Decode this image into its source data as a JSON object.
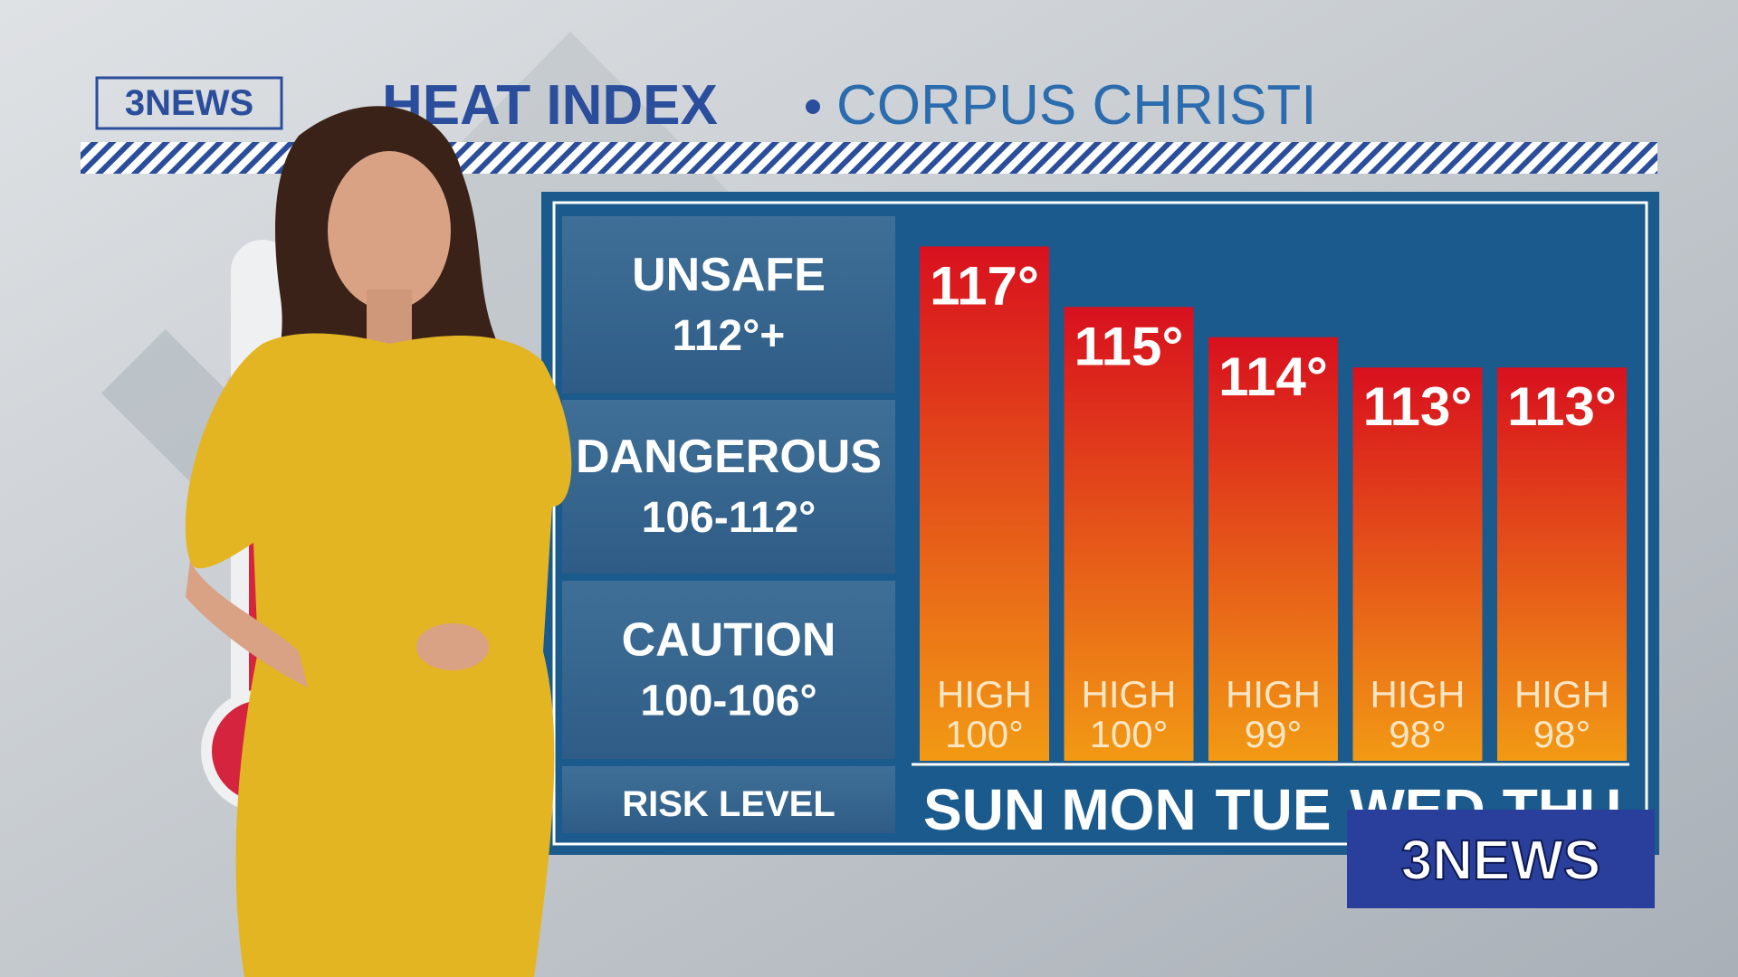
{
  "chart_data": {
    "type": "bar",
    "logo": "3NEWS",
    "title": "HEAT INDEX",
    "subtitle": "CORPUS CHRISTI",
    "categories": [
      "SUN",
      "MON",
      "TUE",
      "WED",
      "THU"
    ],
    "values": [
      117,
      115,
      114,
      113,
      113
    ],
    "value_labels": [
      "117°",
      "115°",
      "114°",
      "113°",
      "113°"
    ],
    "colors": [
      "#d8101e",
      "#f29a14"
    ],
    "ylim": [
      100,
      118
    ],
    "highs": {
      "label": "HIGH",
      "values": [
        100,
        100,
        99,
        98,
        98
      ],
      "value_labels": [
        "100°",
        "100°",
        "99°",
        "98°",
        "98°"
      ]
    },
    "risk_header": "RISK LEVEL",
    "risk_levels": [
      {
        "label": "UNSAFE",
        "range": "112°+"
      },
      {
        "label": "DANGEROUS",
        "range": "106-112°"
      },
      {
        "label": "CAUTION",
        "range": "100-106°"
      }
    ]
  }
}
